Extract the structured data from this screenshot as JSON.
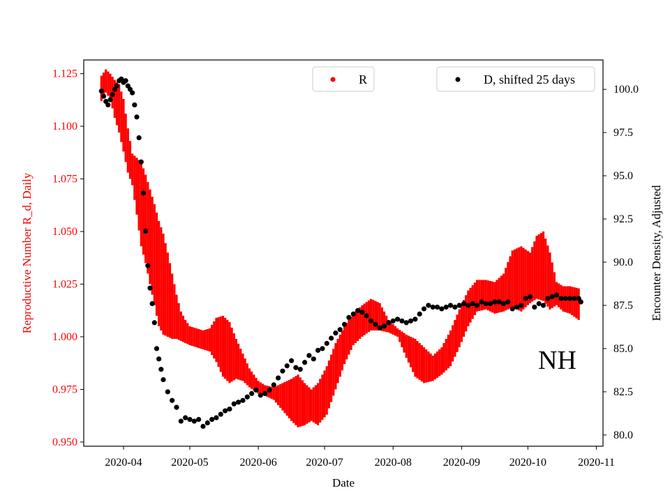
{
  "chart_data": {
    "type": "line",
    "xlabel": "Date",
    "ylabel_left": "Reproductive Number R_d, Daily",
    "ylabel_right": "Encounter Density, Adjusted",
    "x_ticks": [
      "2020-04",
      "2020-05",
      "2020-06",
      "2020-07",
      "2020-08",
      "2020-09",
      "2020-10",
      "2020-11"
    ],
    "x_range": [
      "2020-03-14",
      "2020-11-04"
    ],
    "ylim_left": [
      0.948,
      1.1315
    ],
    "ylim_right": [
      79.35,
      101.7
    ],
    "y_ticks_left": [
      "0.950",
      "0.975",
      "1.000",
      "1.025",
      "1.050",
      "1.075",
      "1.100",
      "1.125"
    ],
    "y_ticks_right": [
      "80.0",
      "82.5",
      "85.0",
      "87.5",
      "90.0",
      "92.5",
      "95.0",
      "97.5",
      "100.0"
    ],
    "annotation": "NH",
    "colors": {
      "r_series": "#ff0000",
      "d_series": "#000000",
      "left_axis_text": "#ff0000",
      "right_axis_text": "#000000"
    },
    "grid": false,
    "series": [
      {
        "name": "R",
        "axis": "left",
        "style": "errorbar",
        "legend": "upper-center",
        "points": [
          [
            "2020-03-22",
            1.112,
            1.124
          ],
          [
            "2020-03-24",
            1.116,
            1.127
          ],
          [
            "2020-03-26",
            1.113,
            1.125
          ],
          [
            "2020-03-28",
            1.104,
            1.122
          ],
          [
            "2020-03-30",
            1.097,
            1.12
          ],
          [
            "2020-04-01",
            1.088,
            1.113
          ],
          [
            "2020-04-03",
            1.078,
            1.099
          ],
          [
            "2020-04-05",
            1.072,
            1.087
          ],
          [
            "2020-04-07",
            1.058,
            1.085
          ],
          [
            "2020-04-09",
            1.043,
            1.083
          ],
          [
            "2020-04-11",
            1.035,
            1.077
          ],
          [
            "2020-04-13",
            1.025,
            1.07
          ],
          [
            "2020-04-15",
            1.015,
            1.063
          ],
          [
            "2020-04-17",
            1.005,
            1.055
          ],
          [
            "2020-04-19",
            1.001,
            1.049
          ],
          [
            "2020-04-21",
            1.0,
            1.04
          ],
          [
            "2020-04-23",
            0.999,
            1.03
          ],
          [
            "2020-04-25",
            0.999,
            1.02
          ],
          [
            "2020-04-27",
            0.998,
            1.012
          ],
          [
            "2020-04-29",
            0.997,
            1.008
          ],
          [
            "2020-05-01",
            0.996,
            1.005
          ],
          [
            "2020-05-04",
            0.995,
            1.004
          ],
          [
            "2020-05-07",
            0.994,
            1.003
          ],
          [
            "2020-05-10",
            0.993,
            1.004
          ],
          [
            "2020-05-13",
            0.988,
            1.009
          ],
          [
            "2020-05-16",
            0.981,
            1.01
          ],
          [
            "2020-05-19",
            0.978,
            1.007
          ],
          [
            "2020-05-22",
            0.98,
            0.999
          ],
          [
            "2020-05-25",
            0.979,
            0.992
          ],
          [
            "2020-05-28",
            0.976,
            0.985
          ],
          [
            "2020-06-01",
            0.973,
            0.979
          ],
          [
            "2020-06-04",
            0.972,
            0.977
          ],
          [
            "2020-06-08",
            0.97,
            0.976
          ],
          [
            "2020-06-12",
            0.965,
            0.978
          ],
          [
            "2020-06-16",
            0.96,
            0.98
          ],
          [
            "2020-06-19",
            0.957,
            0.982
          ],
          [
            "2020-06-22",
            0.958,
            0.978
          ],
          [
            "2020-06-25",
            0.96,
            0.975
          ],
          [
            "2020-06-28",
            0.958,
            0.978
          ],
          [
            "2020-07-02",
            0.963,
            0.986
          ],
          [
            "2020-07-06",
            0.975,
            0.997
          ],
          [
            "2020-07-10",
            0.987,
            1.005
          ],
          [
            "2020-07-14",
            0.996,
            1.011
          ],
          [
            "2020-07-18",
            1.0,
            1.015
          ],
          [
            "2020-07-22",
            1.003,
            1.018
          ],
          [
            "2020-07-26",
            1.003,
            1.016
          ],
          [
            "2020-07-30",
            1.002,
            1.008
          ],
          [
            "2020-08-03",
            1.0,
            1.004
          ],
          [
            "2020-08-07",
            0.99,
            1.001
          ],
          [
            "2020-08-11",
            0.981,
            0.999
          ],
          [
            "2020-08-15",
            0.978,
            0.995
          ],
          [
            "2020-08-19",
            0.979,
            0.991
          ],
          [
            "2020-08-23",
            0.982,
            0.995
          ],
          [
            "2020-08-27",
            0.986,
            1.003
          ],
          [
            "2020-08-31",
            0.995,
            1.013
          ],
          [
            "2020-09-04",
            1.005,
            1.022
          ],
          [
            "2020-09-08",
            1.012,
            1.027
          ],
          [
            "2020-09-12",
            1.013,
            1.027
          ],
          [
            "2020-09-16",
            1.011,
            1.026
          ],
          [
            "2020-09-20",
            1.012,
            1.03
          ],
          [
            "2020-09-24",
            1.014,
            1.041
          ],
          [
            "2020-09-28",
            1.012,
            1.043
          ],
          [
            "2020-10-02",
            1.016,
            1.04
          ],
          [
            "2020-10-05",
            1.018,
            1.048
          ],
          [
            "2020-10-08",
            1.017,
            1.05
          ],
          [
            "2020-10-11",
            1.013,
            1.04
          ],
          [
            "2020-10-14",
            1.015,
            1.026
          ],
          [
            "2020-10-17",
            1.012,
            1.024
          ],
          [
            "2020-10-20",
            1.011,
            1.024
          ],
          [
            "2020-10-24",
            1.008,
            1.023
          ]
        ]
      },
      {
        "name": "D, shifted 25 days",
        "axis": "right",
        "style": "dots",
        "legend": "upper-right",
        "points": [
          [
            "2020-03-22",
            99.9
          ],
          [
            "2020-03-23",
            99.6
          ],
          [
            "2020-03-24",
            99.3
          ],
          [
            "2020-03-25",
            99.1
          ],
          [
            "2020-03-26",
            99.4
          ],
          [
            "2020-03-27",
            99.7
          ],
          [
            "2020-03-28",
            100.0
          ],
          [
            "2020-03-29",
            100.2
          ],
          [
            "2020-03-30",
            100.5
          ],
          [
            "2020-03-31",
            100.6
          ],
          [
            "2020-04-01",
            100.4
          ],
          [
            "2020-04-02",
            100.5
          ],
          [
            "2020-04-03",
            100.2
          ],
          [
            "2020-04-04",
            100.0
          ],
          [
            "2020-04-05",
            99.8
          ],
          [
            "2020-04-06",
            99.1
          ],
          [
            "2020-04-07",
            98.4
          ],
          [
            "2020-04-08",
            97.2
          ],
          [
            "2020-04-09",
            95.8
          ],
          [
            "2020-04-10",
            94.0
          ],
          [
            "2020-04-11",
            91.8
          ],
          [
            "2020-04-12",
            89.8
          ],
          [
            "2020-04-13",
            88.5
          ],
          [
            "2020-04-14",
            87.6
          ],
          [
            "2020-04-15",
            86.5
          ],
          [
            "2020-04-16",
            85.0
          ],
          [
            "2020-04-17",
            84.4
          ],
          [
            "2020-04-18",
            83.8
          ],
          [
            "2020-04-19",
            83.2
          ],
          [
            "2020-04-21",
            82.5
          ],
          [
            "2020-04-23",
            82.0
          ],
          [
            "2020-04-25",
            81.6
          ],
          [
            "2020-04-27",
            80.8
          ],
          [
            "2020-04-29",
            81.0
          ],
          [
            "2020-05-01",
            80.9
          ],
          [
            "2020-05-03",
            80.8
          ],
          [
            "2020-05-05",
            80.9
          ],
          [
            "2020-05-07",
            80.5
          ],
          [
            "2020-05-09",
            80.7
          ],
          [
            "2020-05-11",
            80.9
          ],
          [
            "2020-05-13",
            81.0
          ],
          [
            "2020-05-15",
            81.2
          ],
          [
            "2020-05-17",
            81.4
          ],
          [
            "2020-05-19",
            81.5
          ],
          [
            "2020-05-21",
            81.8
          ],
          [
            "2020-05-23",
            81.9
          ],
          [
            "2020-05-25",
            82.0
          ],
          [
            "2020-05-27",
            82.2
          ],
          [
            "2020-05-29",
            82.4
          ],
          [
            "2020-05-31",
            82.6
          ],
          [
            "2020-06-02",
            82.3
          ],
          [
            "2020-06-04",
            82.4
          ],
          [
            "2020-06-06",
            82.6
          ],
          [
            "2020-06-08",
            82.9
          ],
          [
            "2020-06-10",
            83.3
          ],
          [
            "2020-06-12",
            83.7
          ],
          [
            "2020-06-14",
            84.0
          ],
          [
            "2020-06-16",
            84.3
          ],
          [
            "2020-06-18",
            83.9
          ],
          [
            "2020-06-20",
            83.8
          ],
          [
            "2020-06-22",
            84.2
          ],
          [
            "2020-06-24",
            84.6
          ],
          [
            "2020-06-26",
            84.4
          ],
          [
            "2020-06-28",
            84.9
          ],
          [
            "2020-06-30",
            85.0
          ],
          [
            "2020-07-02",
            85.3
          ],
          [
            "2020-07-04",
            85.6
          ],
          [
            "2020-07-06",
            85.9
          ],
          [
            "2020-07-08",
            86.1
          ],
          [
            "2020-07-10",
            86.4
          ],
          [
            "2020-07-12",
            86.8
          ],
          [
            "2020-07-14",
            87.0
          ],
          [
            "2020-07-16",
            87.2
          ],
          [
            "2020-07-18",
            87.1
          ],
          [
            "2020-07-20",
            86.9
          ],
          [
            "2020-07-22",
            86.6
          ],
          [
            "2020-07-24",
            86.4
          ],
          [
            "2020-07-26",
            86.2
          ],
          [
            "2020-07-28",
            86.3
          ],
          [
            "2020-07-30",
            86.5
          ],
          [
            "2020-08-01",
            86.6
          ],
          [
            "2020-08-03",
            86.7
          ],
          [
            "2020-08-05",
            86.6
          ],
          [
            "2020-08-07",
            86.5
          ],
          [
            "2020-08-09",
            86.6
          ],
          [
            "2020-08-11",
            86.7
          ],
          [
            "2020-08-13",
            87.0
          ],
          [
            "2020-08-15",
            87.3
          ],
          [
            "2020-08-17",
            87.5
          ],
          [
            "2020-08-19",
            87.4
          ],
          [
            "2020-08-21",
            87.4
          ],
          [
            "2020-08-23",
            87.3
          ],
          [
            "2020-08-25",
            87.4
          ],
          [
            "2020-08-27",
            87.5
          ],
          [
            "2020-08-29",
            87.4
          ],
          [
            "2020-08-31",
            87.5
          ],
          [
            "2020-09-02",
            87.6
          ],
          [
            "2020-09-04",
            87.5
          ],
          [
            "2020-09-06",
            87.6
          ],
          [
            "2020-09-08",
            87.5
          ],
          [
            "2020-09-10",
            87.7
          ],
          [
            "2020-09-12",
            87.6
          ],
          [
            "2020-09-14",
            87.6
          ],
          [
            "2020-09-16",
            87.7
          ],
          [
            "2020-09-18",
            87.7
          ],
          [
            "2020-09-20",
            87.6
          ],
          [
            "2020-09-22",
            87.7
          ],
          [
            "2020-09-24",
            87.3
          ],
          [
            "2020-09-26",
            87.4
          ],
          [
            "2020-09-28",
            87.5
          ],
          [
            "2020-09-30",
            87.9
          ],
          [
            "2020-10-02",
            88.0
          ],
          [
            "2020-10-04",
            87.4
          ],
          [
            "2020-10-06",
            87.6
          ],
          [
            "2020-10-08",
            87.5
          ],
          [
            "2020-10-10",
            87.9
          ],
          [
            "2020-10-12",
            88.0
          ],
          [
            "2020-10-14",
            88.1
          ],
          [
            "2020-10-16",
            87.9
          ],
          [
            "2020-10-18",
            87.9
          ],
          [
            "2020-10-20",
            87.9
          ],
          [
            "2020-10-22",
            87.9
          ],
          [
            "2020-10-24",
            87.9
          ],
          [
            "2020-10-25",
            87.7
          ]
        ]
      }
    ]
  }
}
